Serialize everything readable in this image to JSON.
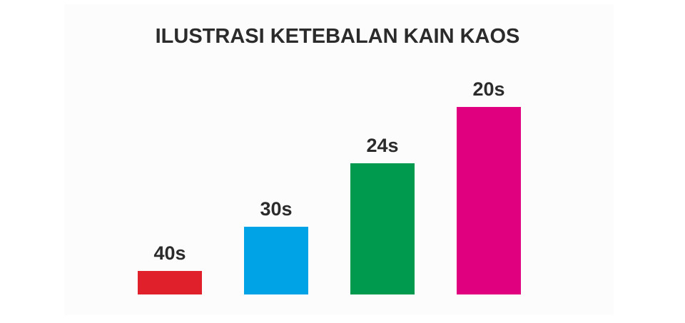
{
  "chart_data": {
    "type": "bar",
    "title": "ILUSTRASI KETEBALAN KAIN KAOS",
    "categories": [
      "40s",
      "30s",
      "24s",
      "20s"
    ],
    "values": [
      33,
      95,
      184,
      263
    ],
    "colors": [
      "#e0202a",
      "#00a3e6",
      "#009a4e",
      "#e0007f"
    ],
    "ylim": [
      0,
      300
    ]
  }
}
